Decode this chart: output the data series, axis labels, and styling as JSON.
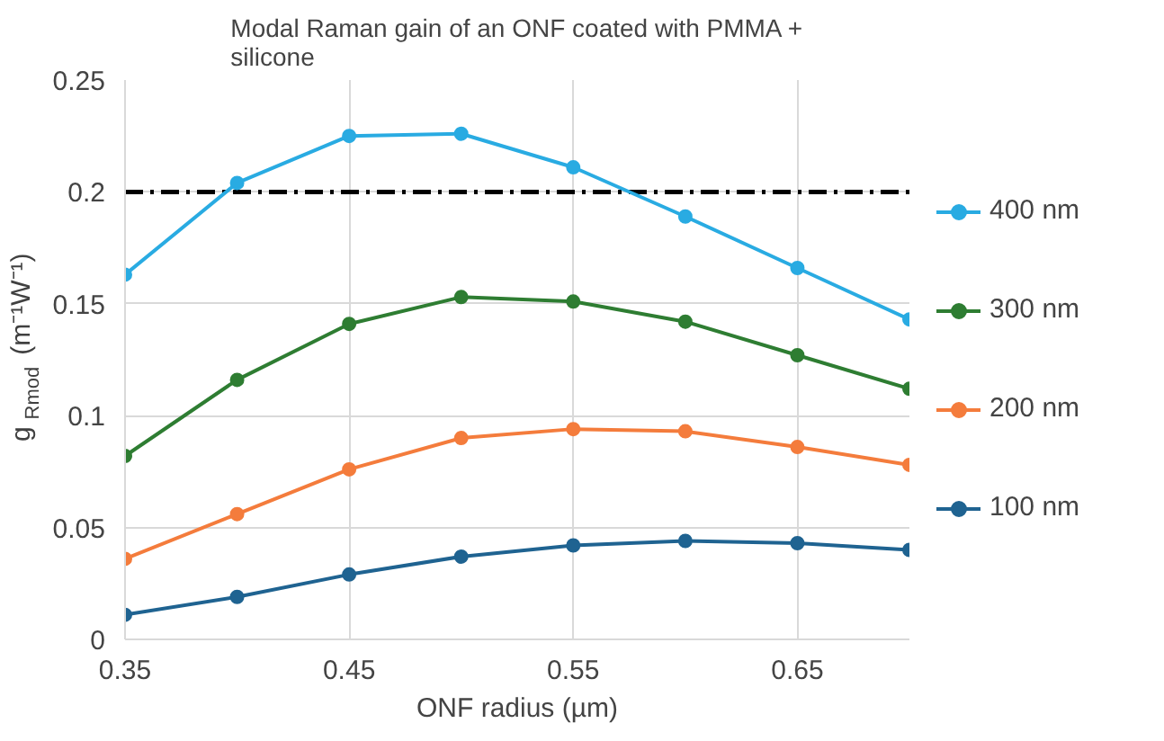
{
  "chart_data": {
    "type": "line",
    "title": "Modal Raman gain of an ONF coated with PMMA +\nsilicone",
    "xlabel": "ONF radius (µm)",
    "ylabel": "g$_{Rmod}$ (m⁻¹W⁻¹)",
    "x": [
      0.35,
      0.4,
      0.45,
      0.5,
      0.55,
      0.6,
      0.65,
      0.7
    ],
    "series": [
      {
        "name": "400 nm",
        "color": "#29abe2",
        "values": [
          0.163,
          0.204,
          0.225,
          0.226,
          0.211,
          0.189,
          0.166,
          0.143
        ]
      },
      {
        "name": "300 nm",
        "color": "#2e7d32",
        "values": [
          0.082,
          0.116,
          0.141,
          0.153,
          0.151,
          0.142,
          0.127,
          0.112
        ]
      },
      {
        "name": "200 nm",
        "color": "#f47c3c",
        "values": [
          0.036,
          0.056,
          0.076,
          0.09,
          0.094,
          0.093,
          0.086,
          0.078
        ]
      },
      {
        "name": "100 nm",
        "color": "#1f6391",
        "values": [
          0.011,
          0.019,
          0.029,
          0.037,
          0.042,
          0.044,
          0.043,
          0.04
        ]
      }
    ],
    "xlim": [
      0.35,
      0.7
    ],
    "xticks": [
      0.35,
      0.45,
      0.55,
      0.65
    ],
    "ylim": [
      0,
      0.25
    ],
    "yticks": [
      0,
      0.05,
      0.1,
      0.15,
      0.2,
      0.25
    ],
    "ref_lines": [
      {
        "axis": "y",
        "value": 0.2,
        "color": "#000000",
        "line_style": "dashdot"
      }
    ],
    "grid": true,
    "legend": "right",
    "marker": "circle",
    "line_style": "solid"
  }
}
